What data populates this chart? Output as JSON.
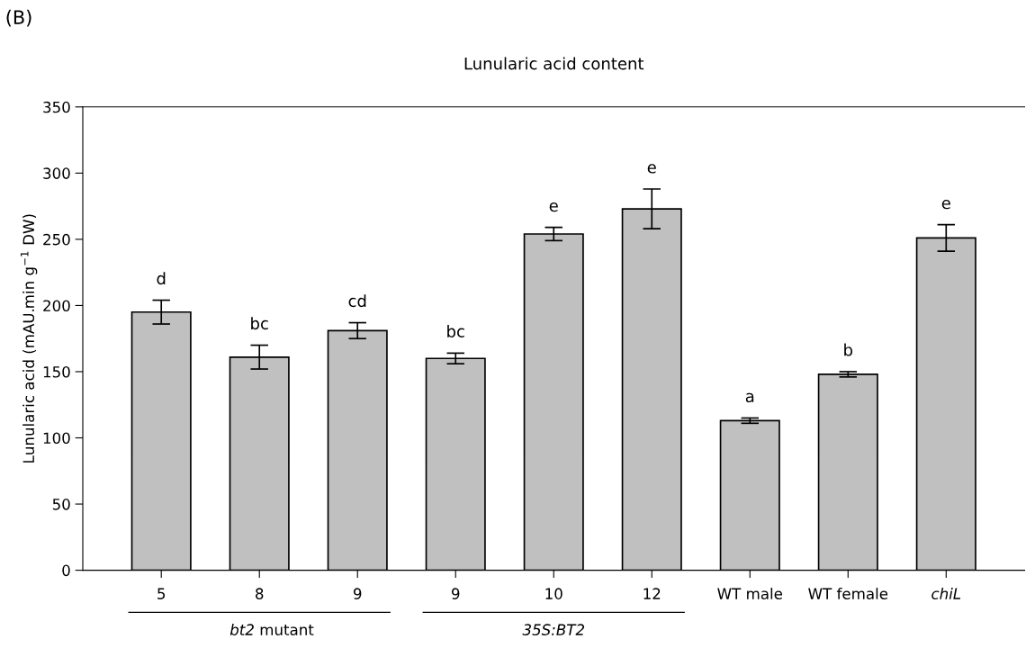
{
  "chart_data": {
    "type": "bar",
    "title": "Lunularic acid content",
    "ylabel": "Lunularic acid (mAU.min g$^{−1}$ DW)",
    "categories": [
      "5",
      "8",
      "9",
      "9",
      "10",
      "12",
      "WT male",
      "WT female",
      "chiL"
    ],
    "values": [
      195,
      161,
      181,
      160,
      254,
      273,
      113,
      148,
      251
    ],
    "errors": [
      9,
      9,
      6,
      4,
      5,
      15,
      2,
      2,
      10
    ],
    "value_labels": [
      "d",
      "bc",
      "cd",
      "bc",
      "e",
      "e",
      "a",
      "b",
      "e"
    ],
    "color": "#c0c0c0",
    "ylim": [
      0,
      350
    ],
    "yticks": [
      0,
      50,
      100,
      150,
      200,
      250,
      300,
      350
    ],
    "grid": false,
    "legend": false,
    "annotations": [
      "(B)",
      "bt2 mutant",
      "35S:BT2"
    ]
  }
}
